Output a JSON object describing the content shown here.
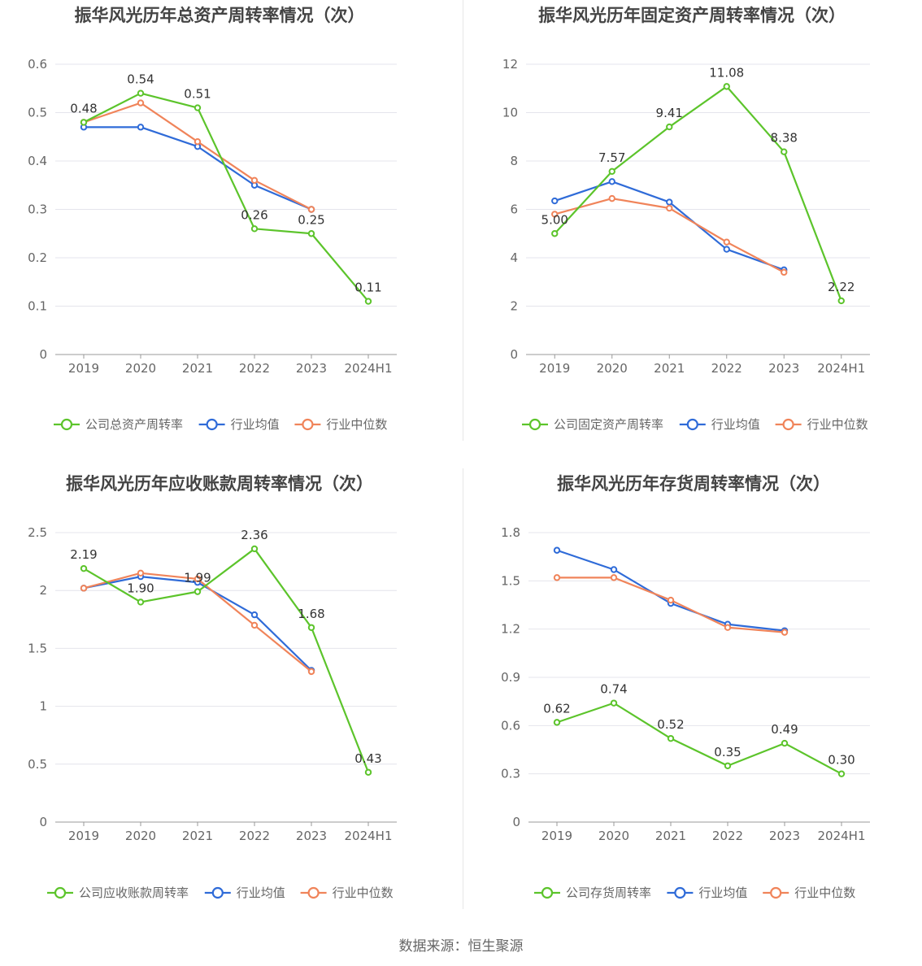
{
  "colors": {
    "company": "#5cc42b",
    "avg": "#2f6bd8",
    "median": "#f0845a",
    "grid": "#e4e4ec",
    "axis": "#999999"
  },
  "source": "数据来源：恒生聚源",
  "chart_data": [
    {
      "type": "line",
      "title": "振华风光历年总资产周转率情况（次）",
      "categories": [
        "2019",
        "2020",
        "2021",
        "2022",
        "2023",
        "2024H1"
      ],
      "yticks": [
        "0",
        "0.1",
        "0.2",
        "0.3",
        "0.4",
        "0.5",
        "0.6"
      ],
      "ylim": [
        0,
        0.6
      ],
      "grid": true,
      "legend_position": "bottom",
      "series": [
        {
          "name": "公司总资产周转率",
          "values": [
            0.48,
            0.54,
            0.51,
            0.26,
            0.25,
            0.11
          ],
          "labels": [
            "0.48",
            "0.54",
            "0.51",
            "0.26",
            "0.25",
            "0.11"
          ]
        },
        {
          "name": "行业均值",
          "values": [
            0.47,
            0.47,
            0.43,
            0.35,
            0.3,
            null
          ]
        },
        {
          "name": "行业中位数",
          "values": [
            0.48,
            0.52,
            0.44,
            0.36,
            0.3,
            null
          ]
        }
      ]
    },
    {
      "type": "line",
      "title": "振华风光历年固定资产周转率情况（次）",
      "categories": [
        "2019",
        "2020",
        "2021",
        "2022",
        "2023",
        "2024H1"
      ],
      "yticks": [
        "0",
        "2",
        "4",
        "6",
        "8",
        "10",
        "12"
      ],
      "ylim": [
        0,
        12
      ],
      "grid": true,
      "legend_position": "bottom",
      "series": [
        {
          "name": "公司固定资产周转率",
          "values": [
            5.0,
            7.57,
            9.41,
            11.08,
            8.38,
            2.22
          ],
          "labels": [
            "5.00",
            "7.57",
            "9.41",
            "11.08",
            "8.38",
            "2.22"
          ]
        },
        {
          "name": "行业均值",
          "values": [
            6.35,
            7.15,
            6.3,
            4.35,
            3.5,
            null
          ]
        },
        {
          "name": "行业中位数",
          "values": [
            5.8,
            6.45,
            6.05,
            4.65,
            3.4,
            null
          ]
        }
      ]
    },
    {
      "type": "line",
      "title": "振华风光历年应收账款周转率情况（次）",
      "categories": [
        "2019",
        "2020",
        "2021",
        "2022",
        "2023",
        "2024H1"
      ],
      "yticks": [
        "0",
        "0.5",
        "1",
        "1.5",
        "2",
        "2.5"
      ],
      "ylim": [
        0,
        2.5
      ],
      "grid": true,
      "legend_position": "bottom",
      "series": [
        {
          "name": "公司应收账款周转率",
          "values": [
            2.19,
            1.9,
            1.99,
            2.36,
            1.68,
            0.43
          ],
          "labels": [
            "2.19",
            "1.90",
            "1.99",
            "2.36",
            "1.68",
            "0.43"
          ]
        },
        {
          "name": "行业均值",
          "values": [
            2.02,
            2.12,
            2.07,
            1.79,
            1.31,
            null
          ]
        },
        {
          "name": "行业中位数",
          "values": [
            2.02,
            2.15,
            2.1,
            1.7,
            1.3,
            null
          ]
        }
      ]
    },
    {
      "type": "line",
      "title": "振华风光历年存货周转率情况（次）",
      "categories": [
        "2019",
        "2020",
        "2021",
        "2022",
        "2023",
        "2024H1"
      ],
      "yticks": [
        "0",
        "0.3",
        "0.6",
        "0.9",
        "1.2",
        "1.5",
        "1.8"
      ],
      "ylim": [
        0,
        1.8
      ],
      "grid": true,
      "legend_position": "bottom",
      "series": [
        {
          "name": "公司存货周转率",
          "values": [
            0.62,
            0.74,
            0.52,
            0.35,
            0.49,
            0.3
          ],
          "labels": [
            "0.62",
            "0.74",
            "0.52",
            "0.35",
            "0.49",
            "0.30"
          ]
        },
        {
          "name": "行业均值",
          "values": [
            1.69,
            1.57,
            1.36,
            1.23,
            1.19,
            null
          ]
        },
        {
          "name": "行业中位数",
          "values": [
            1.52,
            1.52,
            1.38,
            1.21,
            1.18,
            null
          ]
        }
      ]
    }
  ]
}
